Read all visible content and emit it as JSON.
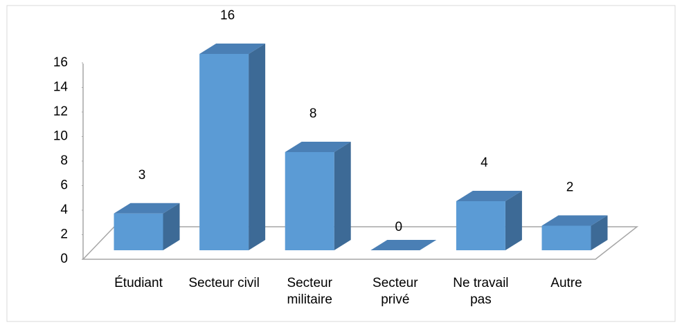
{
  "chart_data": {
    "type": "bar3d",
    "categories": [
      "Étudiant",
      "Secteur civil",
      "Secteur militaire",
      "Secteur privé",
      "Ne travail pas",
      "Autre"
    ],
    "values": [
      3,
      16,
      8,
      0,
      4,
      2
    ],
    "color": "#5b9bd5",
    "ylim": [
      0,
      16
    ],
    "yticks": [
      0,
      2,
      4,
      6,
      8,
      10,
      12,
      14,
      16
    ],
    "grid": false
  }
}
